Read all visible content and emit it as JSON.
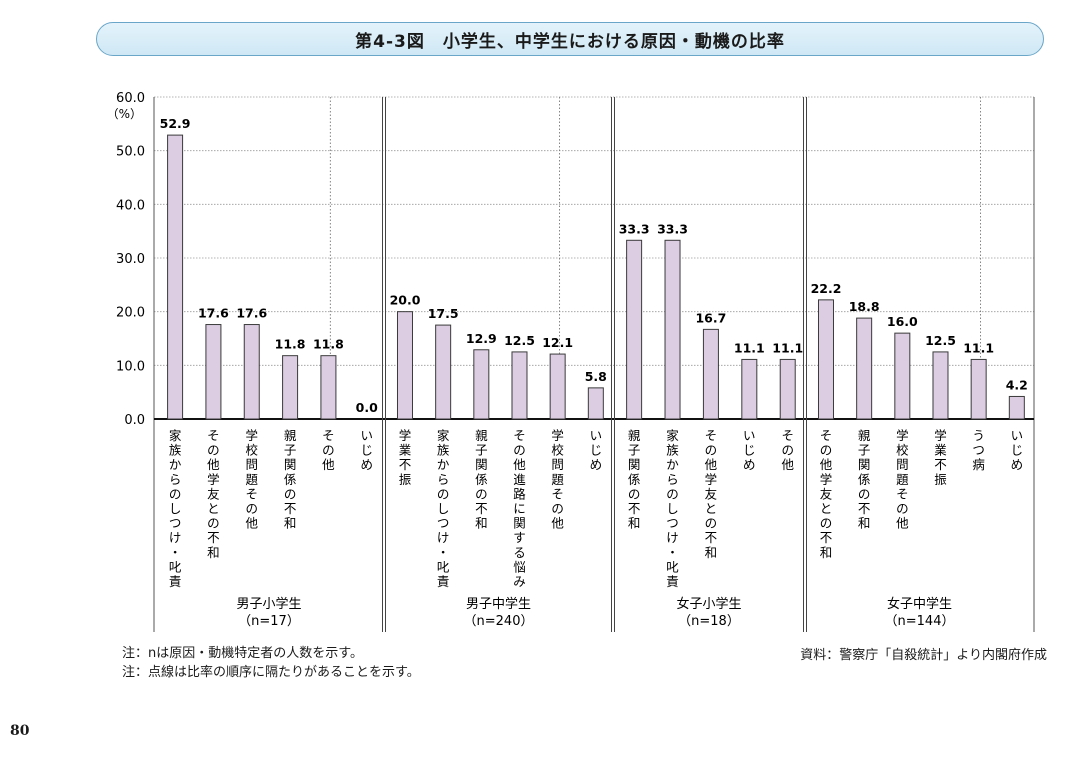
{
  "title": "第4-3図　小学生、中学生における原因・動機の比率",
  "notes": [
    "注：nは原因・動機特定者の人数を示す。",
    "注：点線は比率の順序に隔たりがあることを示す。"
  ],
  "source": "資料：警察庁「自殺統計」より内閣府作成",
  "page_number": "80",
  "colors": {
    "bar_fill": "#dccde3",
    "bar_stroke": "#3a3a3a",
    "grid": "#9a9a9a"
  },
  "chart_data": {
    "type": "bar",
    "ylabel": "（%）",
    "ylim": [
      0,
      60
    ],
    "yticks": [
      "0.0",
      "10.0",
      "20.0",
      "30.0",
      "40.0",
      "50.0",
      "60.0"
    ],
    "grid": true,
    "groups": [
      {
        "name": "男子小学生",
        "n": "（n=17）",
        "categories": [
          "家族からのしつけ・叱責",
          "その他学友との不和",
          "学校問題その他",
          "親子関係の不和",
          "その他",
          "いじめ"
        ],
        "values": [
          52.9,
          17.6,
          17.6,
          11.8,
          11.8,
          0.0
        ],
        "labels": [
          "52.9",
          "17.6",
          "17.6",
          "11.8",
          "11.8",
          "0.0"
        ],
        "dotted_after": 4
      },
      {
        "name": "男子中学生",
        "n": "（n=240）",
        "categories": [
          "学業不振",
          "家族からのしつけ・叱責",
          "親子関係の不和",
          "その他進路に関する悩み",
          "学校問題その他",
          "いじめ"
        ],
        "values": [
          20.0,
          17.5,
          12.9,
          12.5,
          12.1,
          5.8
        ],
        "labels": [
          "20.0",
          "17.5",
          "12.9",
          "12.5",
          "12.1",
          "5.8"
        ],
        "dotted_after": 4
      },
      {
        "name": "女子小学生",
        "n": "（n=18）",
        "categories": [
          "親子関係の不和",
          "家族からのしつけ・叱責",
          "その他学友との不和",
          "いじめ",
          "その他"
        ],
        "values": [
          33.3,
          33.3,
          16.7,
          11.1,
          11.1
        ],
        "labels": [
          "33.3",
          "33.3",
          "16.7",
          "11.1",
          "11.1"
        ],
        "dotted_after": null
      },
      {
        "name": "女子中学生",
        "n": "（n=144）",
        "categories": [
          "その他学友との不和",
          "親子関係の不和",
          "学校問題その他",
          "学業不振",
          "うつ病",
          "いじめ"
        ],
        "values": [
          22.2,
          18.8,
          16.0,
          12.5,
          11.1,
          4.2
        ],
        "labels": [
          "22.2",
          "18.8",
          "16.0",
          "12.5",
          "11.1",
          "4.2"
        ],
        "dotted_after": 4
      }
    ]
  }
}
